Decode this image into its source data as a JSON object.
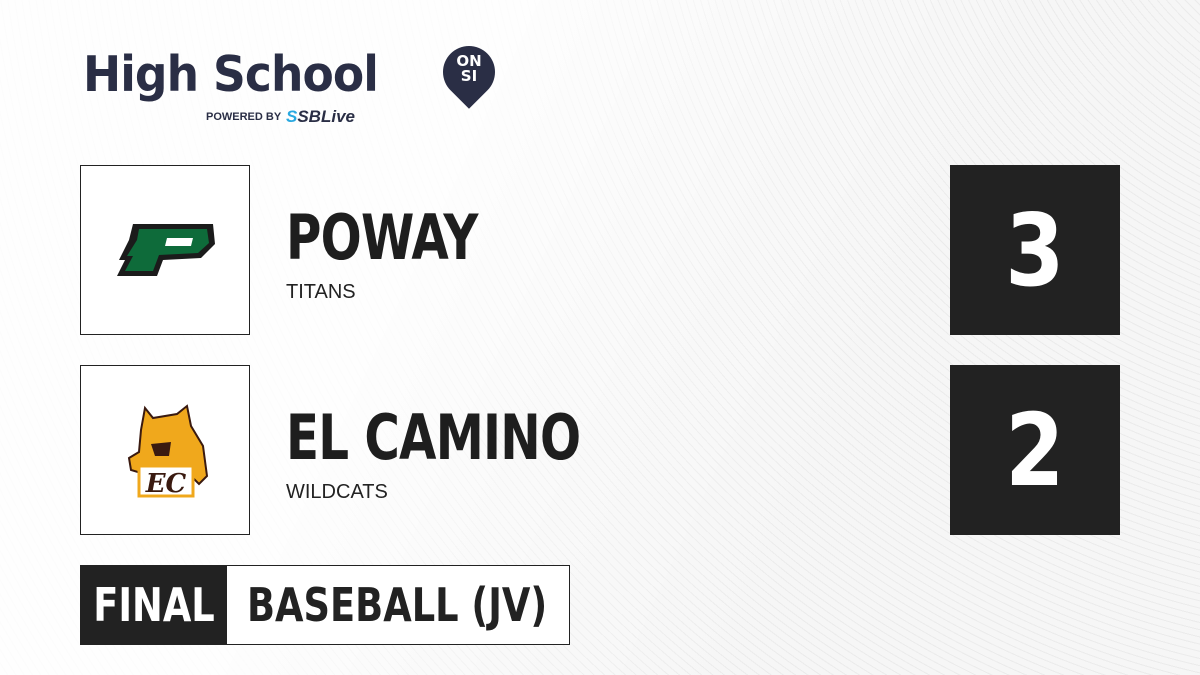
{
  "brand": {
    "title": "High School",
    "badge_line1": "ON",
    "badge_line2": "SI",
    "powered_by": "POWERED BY",
    "partner_prefix": "S",
    "partner": "SBLive"
  },
  "teams": [
    {
      "name": "POWAY",
      "mascot": "TITANS",
      "score": "3",
      "logo": "poway-p-logo",
      "color": "#0e6b3a"
    },
    {
      "name": "EL CAMINO",
      "mascot": "WILDCATS",
      "score": "2",
      "logo": "el-camino-wildcat-logo",
      "color": "#f0a81c"
    }
  ],
  "status": {
    "label": "FINAL",
    "sport": "BASEBALL (JV)"
  }
}
